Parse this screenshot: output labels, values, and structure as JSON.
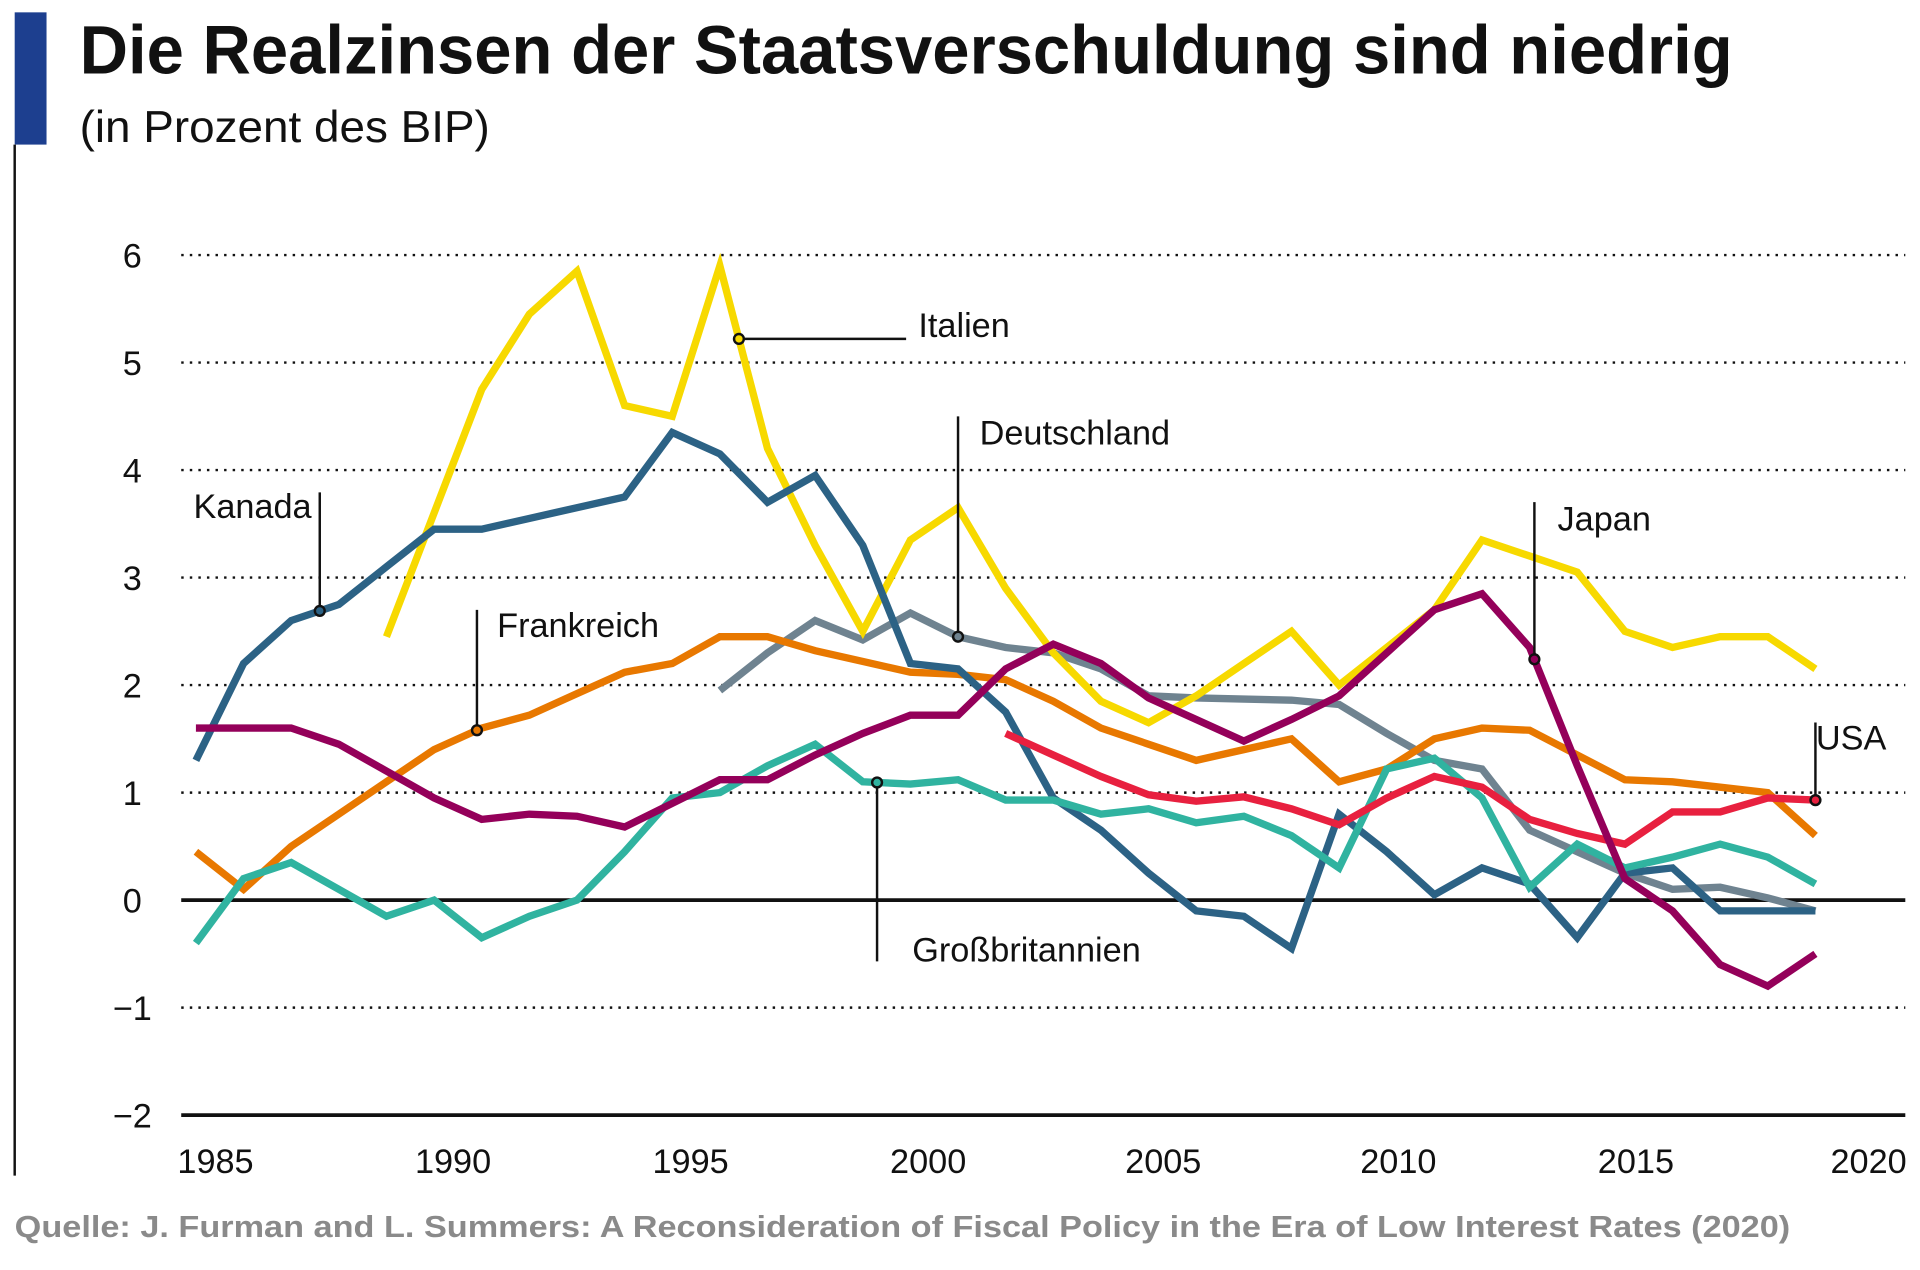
{
  "header": {
    "title": "Die Realzinsen der Staatsverschuldung sind niedrig",
    "subtitle": "(in Prozent des BIP)",
    "accent_color": "#1d3f8f"
  },
  "source": "Quelle: J. Furman and L. Summers: A Reconsideration of Fiscal Policy in the Era of Low Interest Rates (2020)",
  "chart_data": {
    "type": "line",
    "title": "Die Realzinsen der Staatsverschuldung sind niedrig",
    "subtitle": "(in Prozent des BIP)",
    "xlabel": "",
    "ylabel": "",
    "xlim": [
      1985,
      2020
    ],
    "ylim": [
      -2,
      6
    ],
    "x_ticks": [
      "1985",
      "1990",
      "1995",
      "2000",
      "2005",
      "2010",
      "2015",
      "2020"
    ],
    "y_ticks": [
      "6",
      "5",
      "4",
      "3",
      "2",
      "1",
      "0",
      "−1",
      "−2"
    ],
    "grid": "horizontal dotted",
    "legend": "direct labels",
    "series": [
      {
        "name": "Kanada",
        "color": "#2c6285",
        "label_year": 1987.6,
        "start": 1985,
        "values": [
          1.3,
          2.2,
          2.6,
          2.75,
          3.1,
          3.45,
          3.45,
          3.55,
          3.65,
          3.75,
          4.35,
          4.15,
          3.7,
          3.95,
          3.3,
          2.2,
          2.15,
          1.75,
          0.95,
          0.65,
          0.25,
          -0.1,
          -0.15,
          -0.45,
          0.8,
          0.45,
          0.05,
          0.3,
          0.15,
          -0.35,
          0.25,
          0.3,
          -0.1,
          -0.1,
          -0.1
        ]
      },
      {
        "name": "Italien",
        "color": "#f7d900",
        "label_year": 1996.4,
        "start": 1989,
        "values": [
          2.45,
          3.6,
          4.75,
          5.45,
          5.85,
          4.6,
          4.5,
          5.9,
          4.2,
          3.3,
          2.5,
          3.35,
          3.65,
          2.9,
          2.3,
          1.85,
          1.65,
          1.9,
          2.2,
          2.5,
          2.0,
          2.35,
          2.7,
          3.35,
          3.2,
          3.05,
          2.5,
          2.35,
          2.45,
          2.45,
          2.15
        ]
      },
      {
        "name": "Frankreich",
        "color": "#e87800",
        "label_year": 1990.9,
        "start": 1985,
        "values": [
          0.45,
          0.1,
          0.5,
          0.8,
          1.1,
          1.4,
          1.6,
          1.72,
          1.92,
          2.12,
          2.2,
          2.45,
          2.45,
          2.32,
          2.22,
          2.12,
          2.1,
          2.05,
          1.85,
          1.6,
          1.45,
          1.3,
          1.4,
          1.5,
          1.1,
          1.22,
          1.5,
          1.6,
          1.58,
          1.35,
          1.12,
          1.1,
          1.05,
          1.0,
          0.6
        ]
      },
      {
        "name": "Deutschland",
        "color": "#6f8390",
        "label_year": 2001,
        "start": 1996,
        "values": [
          1.95,
          2.3,
          2.6,
          2.42,
          2.67,
          2.45,
          2.35,
          2.3,
          2.15,
          1.9,
          1.88,
          1.87,
          1.86,
          1.82,
          1.55,
          1.3,
          1.22,
          0.65,
          0.45,
          0.25,
          0.1,
          0.12,
          0.02,
          -0.1
        ]
      },
      {
        "name": "Japan",
        "color": "#94005a",
        "label_year": 2013.1,
        "start": 1985,
        "values": [
          1.6,
          1.6,
          1.6,
          1.45,
          1.2,
          0.95,
          0.75,
          0.8,
          0.78,
          0.68,
          0.9,
          1.12,
          1.12,
          1.35,
          1.55,
          1.72,
          1.72,
          2.15,
          2.38,
          2.2,
          1.88,
          1.68,
          1.48,
          1.68,
          1.9,
          2.3,
          2.7,
          2.85,
          2.35,
          1.25,
          0.2,
          -0.1,
          -0.6,
          -0.8,
          -0.5
        ]
      },
      {
        "name": "USA",
        "color": "#e8203f",
        "label_year": 2019,
        "start": 2002,
        "values": [
          1.55,
          1.35,
          1.15,
          0.98,
          0.92,
          0.96,
          0.85,
          0.7,
          0.95,
          1.15,
          1.05,
          0.75,
          0.62,
          0.52,
          0.82,
          0.82,
          0.95,
          0.93
        ]
      },
      {
        "name": "Großbritannien",
        "color": "#30b3a0",
        "label_year": 1999.3,
        "start": 1985,
        "values": [
          -0.4,
          0.2,
          0.35,
          0.1,
          -0.15,
          0,
          -0.35,
          -0.15,
          0,
          0.45,
          0.95,
          1.0,
          1.25,
          1.45,
          1.1,
          1.08,
          1.12,
          0.93,
          0.93,
          0.8,
          0.85,
          0.72,
          0.78,
          0.6,
          0.3,
          1.22,
          1.32,
          0.95,
          0.12,
          0.52,
          0.3,
          0.4,
          0.52,
          0.4,
          0.15
        ]
      }
    ]
  }
}
